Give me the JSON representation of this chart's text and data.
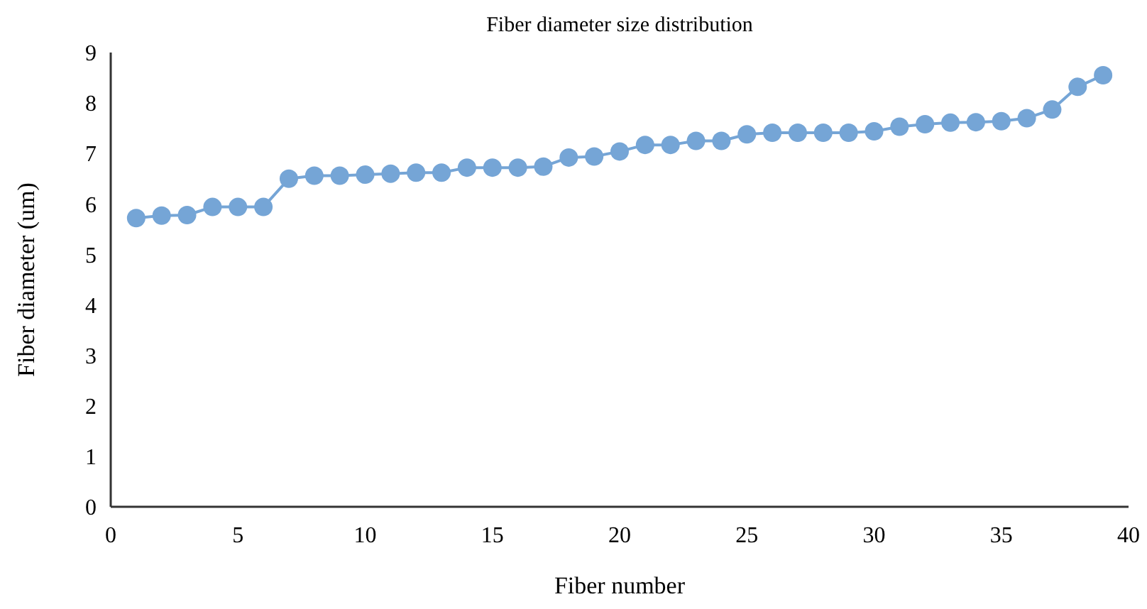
{
  "chart_data": {
    "type": "line",
    "title": "Fiber diameter size distribution",
    "xlabel": "Fiber number",
    "ylabel": "Fiber diameter (um)",
    "x": [
      1,
      2,
      3,
      4,
      5,
      6,
      7,
      8,
      9,
      10,
      11,
      12,
      13,
      14,
      15,
      16,
      17,
      18,
      19,
      20,
      21,
      22,
      23,
      24,
      25,
      26,
      27,
      28,
      29,
      30,
      31,
      32,
      33,
      34,
      35,
      36,
      37,
      38,
      39
    ],
    "series": [
      {
        "color": "#75a5d6",
        "values": [
          5.72,
          5.77,
          5.78,
          5.94,
          5.94,
          5.94,
          6.5,
          6.56,
          6.56,
          6.58,
          6.6,
          6.62,
          6.62,
          6.72,
          6.72,
          6.72,
          6.74,
          6.92,
          6.94,
          7.04,
          7.17,
          7.17,
          7.25,
          7.25,
          7.38,
          7.41,
          7.41,
          7.41,
          7.41,
          7.44,
          7.53,
          7.58,
          7.61,
          7.62,
          7.64,
          7.7,
          7.87,
          8.32,
          8.55
        ]
      }
    ],
    "xlim": [
      0,
      40
    ],
    "xticks": [
      0,
      5,
      10,
      15,
      20,
      25,
      30,
      35,
      40
    ],
    "ylim": [
      0,
      9
    ],
    "yticks": [
      0,
      1,
      2,
      3,
      4,
      5,
      6,
      7,
      8,
      9
    ],
    "grid": false,
    "marker": "circle",
    "line_style": "solid"
  }
}
